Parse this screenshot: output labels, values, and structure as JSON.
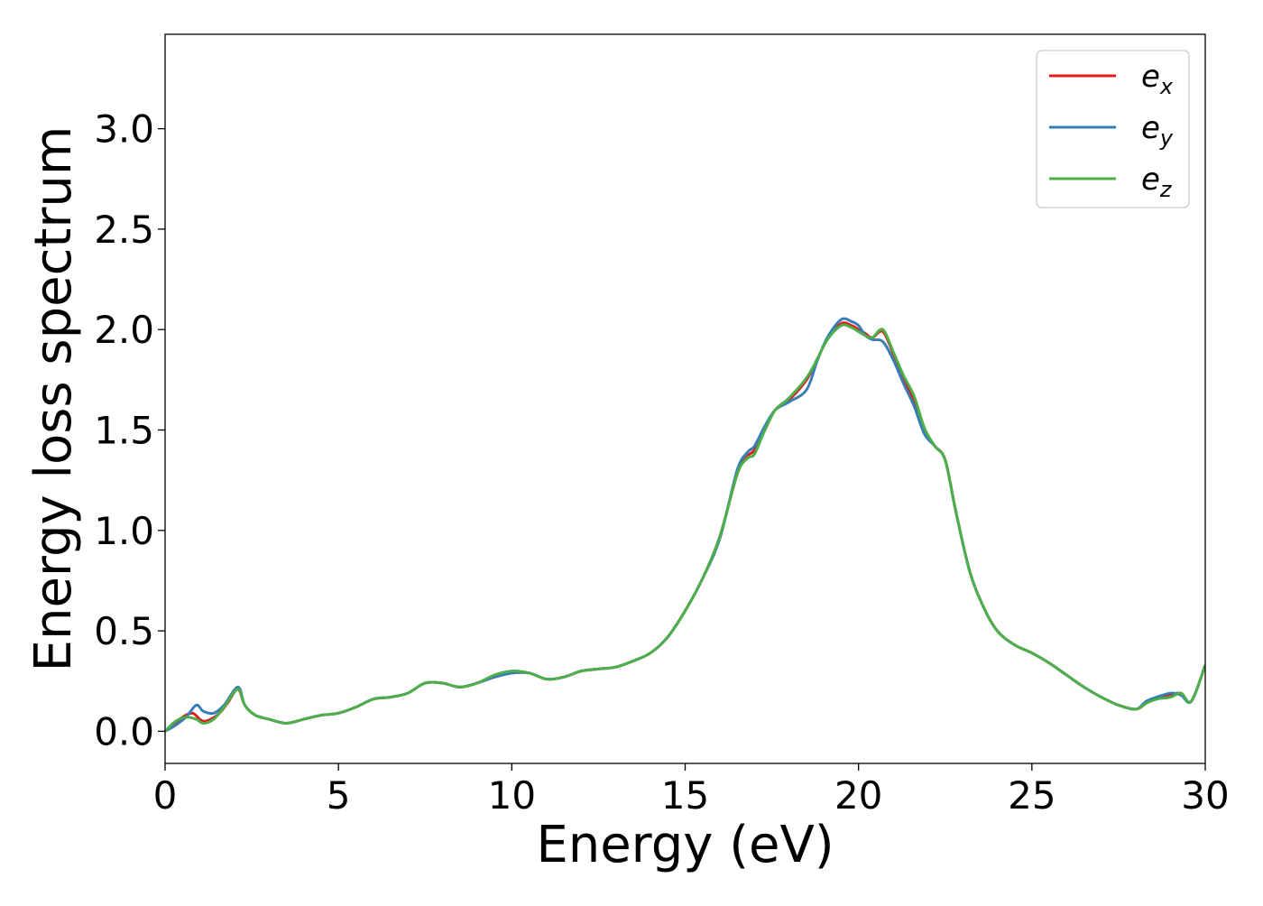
{
  "chart_data": {
    "type": "line",
    "xlabel": "Energy (eV)",
    "ylabel": "Energy loss spectrum",
    "xlim": [
      0,
      30
    ],
    "ylim": [
      -0.16,
      3.47
    ],
    "xticks": [
      0,
      5,
      10,
      15,
      20,
      25,
      30
    ],
    "xtick_labels": [
      "0",
      "5",
      "10",
      "15",
      "20",
      "25",
      "30"
    ],
    "yticks": [
      0.0,
      0.5,
      1.0,
      1.5,
      2.0,
      2.5,
      3.0
    ],
    "ytick_labels": [
      "0.0",
      "0.5",
      "1.0",
      "1.5",
      "2.0",
      "2.5",
      "3.0"
    ],
    "grid": false,
    "legend_position": "top-right",
    "series": [
      {
        "name": "e_x",
        "legend_base": "e",
        "legend_sub": "x",
        "color": "#e41a1c",
        "x": [
          0,
          0.3,
          0.5,
          0.8,
          1.1,
          1.5,
          1.8,
          2.1,
          2.3,
          2.6,
          3.0,
          3.5,
          4.0,
          4.5,
          5.0,
          5.5,
          6.0,
          6.5,
          7.0,
          7.5,
          8.0,
          8.5,
          9.0,
          9.5,
          10.0,
          10.5,
          11.0,
          11.5,
          12.0,
          12.5,
          13.0,
          13.5,
          14.0,
          14.5,
          15.0,
          15.5,
          16.0,
          16.5,
          16.8,
          17.0,
          17.3,
          17.6,
          18.0,
          18.5,
          18.8,
          19.1,
          19.5,
          19.8,
          20.0,
          20.2,
          20.4,
          20.7,
          21.0,
          21.3,
          21.6,
          21.9,
          22.2,
          22.5,
          22.8,
          23.2,
          23.6,
          24.0,
          24.5,
          25.0,
          25.5,
          26.0,
          26.5,
          27.0,
          27.5,
          28.0,
          28.3,
          28.6,
          29.0,
          29.3,
          29.6,
          30.0
        ],
        "y": [
          0.0,
          0.04,
          0.07,
          0.09,
          0.05,
          0.08,
          0.14,
          0.21,
          0.13,
          0.08,
          0.06,
          0.04,
          0.06,
          0.08,
          0.09,
          0.12,
          0.16,
          0.17,
          0.19,
          0.24,
          0.24,
          0.22,
          0.24,
          0.27,
          0.29,
          0.29,
          0.26,
          0.27,
          0.3,
          0.31,
          0.32,
          0.35,
          0.39,
          0.47,
          0.6,
          0.76,
          0.97,
          1.28,
          1.37,
          1.4,
          1.5,
          1.6,
          1.65,
          1.75,
          1.85,
          1.95,
          2.03,
          2.02,
          2.0,
          1.98,
          1.96,
          1.99,
          1.88,
          1.75,
          1.65,
          1.5,
          1.42,
          1.35,
          1.1,
          0.8,
          0.62,
          0.5,
          0.43,
          0.39,
          0.34,
          0.28,
          0.22,
          0.17,
          0.13,
          0.11,
          0.14,
          0.17,
          0.18,
          0.19,
          0.15,
          0.33
        ]
      },
      {
        "name": "e_y",
        "legend_base": "e",
        "legend_sub": "y",
        "color": "#377eb8",
        "x": [
          0,
          0.3,
          0.6,
          0.9,
          1.1,
          1.4,
          1.7,
          2.1,
          2.3,
          2.6,
          3.0,
          3.5,
          4.0,
          4.5,
          5.0,
          5.5,
          6.0,
          6.5,
          7.0,
          7.5,
          8.0,
          8.5,
          9.0,
          9.5,
          10.0,
          10.5,
          11.0,
          11.5,
          12.0,
          12.5,
          13.0,
          13.5,
          14.0,
          14.5,
          15.0,
          15.5,
          16.0,
          16.5,
          16.8,
          17.0,
          17.3,
          17.6,
          18.0,
          18.5,
          18.8,
          19.1,
          19.5,
          19.8,
          20.0,
          20.2,
          20.4,
          20.7,
          21.0,
          21.3,
          21.6,
          21.9,
          22.2,
          22.5,
          22.8,
          23.2,
          23.6,
          24.0,
          24.5,
          25.0,
          25.5,
          26.0,
          26.5,
          27.0,
          27.5,
          28.0,
          28.3,
          28.6,
          29.0,
          29.3,
          29.6,
          30.0
        ],
        "y": [
          0.0,
          0.03,
          0.07,
          0.13,
          0.1,
          0.09,
          0.13,
          0.22,
          0.13,
          0.08,
          0.06,
          0.04,
          0.06,
          0.08,
          0.09,
          0.12,
          0.16,
          0.17,
          0.19,
          0.24,
          0.24,
          0.22,
          0.24,
          0.27,
          0.29,
          0.29,
          0.26,
          0.27,
          0.3,
          0.31,
          0.32,
          0.35,
          0.39,
          0.47,
          0.6,
          0.76,
          0.96,
          1.3,
          1.39,
          1.42,
          1.52,
          1.6,
          1.64,
          1.7,
          1.84,
          1.96,
          2.05,
          2.04,
          2.02,
          1.97,
          1.95,
          1.94,
          1.85,
          1.73,
          1.62,
          1.48,
          1.42,
          1.35,
          1.1,
          0.8,
          0.62,
          0.5,
          0.43,
          0.39,
          0.34,
          0.28,
          0.22,
          0.17,
          0.13,
          0.11,
          0.15,
          0.17,
          0.19,
          0.18,
          0.15,
          0.33
        ]
      },
      {
        "name": "e_z",
        "legend_base": "e",
        "legend_sub": "z",
        "color": "#4daf4a",
        "x": [
          0,
          0.3,
          0.6,
          0.9,
          1.1,
          1.4,
          1.7,
          2.1,
          2.3,
          2.6,
          3.0,
          3.5,
          4.0,
          4.5,
          5.0,
          5.5,
          6.0,
          6.5,
          7.0,
          7.5,
          8.0,
          8.5,
          9.0,
          9.5,
          10.0,
          10.5,
          11.0,
          11.5,
          12.0,
          12.5,
          13.0,
          13.5,
          14.0,
          14.5,
          15.0,
          15.5,
          16.0,
          16.5,
          16.8,
          17.0,
          17.3,
          17.6,
          18.0,
          18.5,
          18.8,
          19.1,
          19.5,
          19.8,
          20.0,
          20.2,
          20.4,
          20.7,
          21.0,
          21.3,
          21.6,
          21.9,
          22.2,
          22.5,
          22.8,
          23.2,
          23.6,
          24.0,
          24.5,
          25.0,
          25.5,
          26.0,
          26.5,
          27.0,
          27.5,
          28.0,
          28.3,
          28.6,
          29.0,
          29.3,
          29.6,
          30.0
        ],
        "y": [
          0.0,
          0.05,
          0.07,
          0.06,
          0.04,
          0.06,
          0.12,
          0.21,
          0.13,
          0.08,
          0.06,
          0.04,
          0.06,
          0.08,
          0.09,
          0.12,
          0.16,
          0.17,
          0.19,
          0.24,
          0.24,
          0.22,
          0.24,
          0.28,
          0.3,
          0.29,
          0.26,
          0.27,
          0.3,
          0.31,
          0.32,
          0.35,
          0.39,
          0.47,
          0.6,
          0.76,
          0.97,
          1.28,
          1.36,
          1.38,
          1.5,
          1.6,
          1.66,
          1.76,
          1.85,
          1.95,
          2.02,
          2.01,
          1.99,
          1.97,
          1.96,
          2.0,
          1.89,
          1.77,
          1.67,
          1.51,
          1.42,
          1.35,
          1.1,
          0.8,
          0.62,
          0.5,
          0.43,
          0.39,
          0.34,
          0.28,
          0.22,
          0.17,
          0.13,
          0.11,
          0.14,
          0.16,
          0.17,
          0.19,
          0.15,
          0.33
        ]
      }
    ]
  }
}
